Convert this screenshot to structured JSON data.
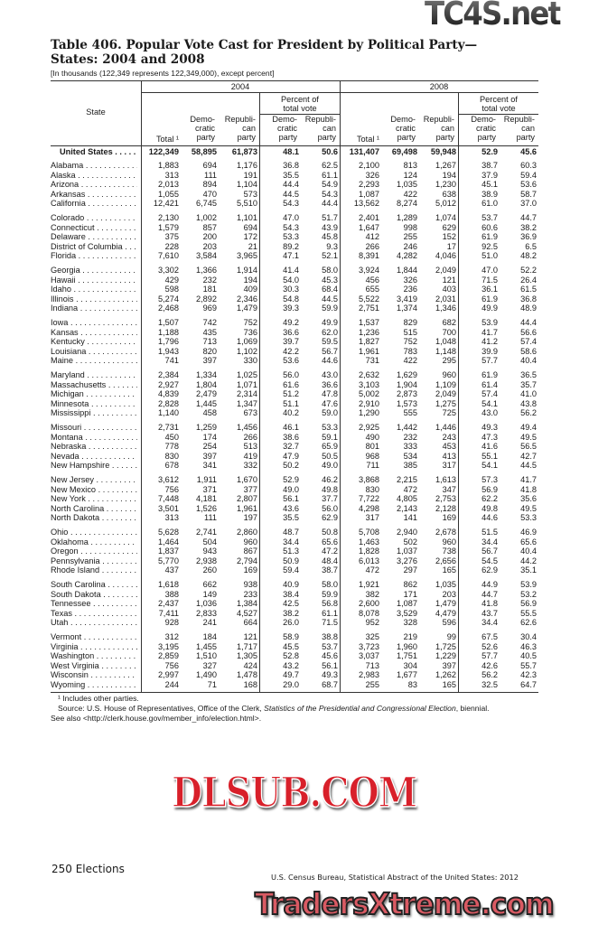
{
  "title": "Table 406. Popular Vote Cast for President by Political Party—States: 2004 and 2008",
  "subtitle": "[In thousands (122,349 represents 122,349,000), except percent]",
  "header": {
    "state": "State",
    "year_2004": "2004",
    "year_2008": "2008",
    "percent_of_total_vote": "Percent of total vote",
    "total": "Total ¹",
    "democratic_party": "Demo- cratic party",
    "republican_party": "Republi- can party",
    "democratic_pct": "Demo- cratic party",
    "republican_pct": "Republi- can party"
  },
  "united_states": {
    "state": "United States",
    "v": [
      "122,349",
      "58,895",
      "61,873",
      "48.1",
      "50.6",
      "131,407",
      "69,498",
      "59,948",
      "52.9",
      "45.6"
    ]
  },
  "groups": [
    [
      {
        "state": "Alabama",
        "v": [
          "1,883",
          "694",
          "1,176",
          "36.8",
          "62.5",
          "2,100",
          "813",
          "1,267",
          "38.7",
          "60.3"
        ]
      },
      {
        "state": "Alaska",
        "v": [
          "313",
          "111",
          "191",
          "35.5",
          "61.1",
          "326",
          "124",
          "194",
          "37.9",
          "59.4"
        ]
      },
      {
        "state": "Arizona",
        "v": [
          "2,013",
          "894",
          "1,104",
          "44.4",
          "54.9",
          "2,293",
          "1,035",
          "1,230",
          "45.1",
          "53.6"
        ]
      },
      {
        "state": "Arkansas",
        "v": [
          "1,055",
          "470",
          "573",
          "44.5",
          "54.3",
          "1,087",
          "422",
          "638",
          "38.9",
          "58.7"
        ]
      },
      {
        "state": "California",
        "v": [
          "12,421",
          "6,745",
          "5,510",
          "54.3",
          "44.4",
          "13,562",
          "8,274",
          "5,012",
          "61.0",
          "37.0"
        ]
      }
    ],
    [
      {
        "state": "Colorado",
        "v": [
          "2,130",
          "1,002",
          "1,101",
          "47.0",
          "51.7",
          "2,401",
          "1,289",
          "1,074",
          "53.7",
          "44.7"
        ]
      },
      {
        "state": "Connecticut",
        "v": [
          "1,579",
          "857",
          "694",
          "54.3",
          "43.9",
          "1,647",
          "998",
          "629",
          "60.6",
          "38.2"
        ]
      },
      {
        "state": "Delaware",
        "v": [
          "375",
          "200",
          "172",
          "53.3",
          "45.8",
          "412",
          "255",
          "152",
          "61.9",
          "36.9"
        ]
      },
      {
        "state": "District of Columbia",
        "v": [
          "228",
          "203",
          "21",
          "89.2",
          "9.3",
          "266",
          "246",
          "17",
          "92.5",
          "6.5"
        ]
      },
      {
        "state": "Florida",
        "v": [
          "7,610",
          "3,584",
          "3,965",
          "47.1",
          "52.1",
          "8,391",
          "4,282",
          "4,046",
          "51.0",
          "48.2"
        ]
      }
    ],
    [
      {
        "state": "Georgia",
        "v": [
          "3,302",
          "1,366",
          "1,914",
          "41.4",
          "58.0",
          "3,924",
          "1,844",
          "2,049",
          "47.0",
          "52.2"
        ]
      },
      {
        "state": "Hawaii",
        "v": [
          "429",
          "232",
          "194",
          "54.0",
          "45.3",
          "456",
          "326",
          "121",
          "71.5",
          "26.4"
        ]
      },
      {
        "state": "Idaho",
        "v": [
          "598",
          "181",
          "409",
          "30.3",
          "68.4",
          "655",
          "236",
          "403",
          "36.1",
          "61.5"
        ]
      },
      {
        "state": "Illinois",
        "v": [
          "5,274",
          "2,892",
          "2,346",
          "54.8",
          "44.5",
          "5,522",
          "3,419",
          "2,031",
          "61.9",
          "36.8"
        ]
      },
      {
        "state": "Indiana",
        "v": [
          "2,468",
          "969",
          "1,479",
          "39.3",
          "59.9",
          "2,751",
          "1,374",
          "1,346",
          "49.9",
          "48.9"
        ]
      }
    ],
    [
      {
        "state": "Iowa",
        "v": [
          "1,507",
          "742",
          "752",
          "49.2",
          "49.9",
          "1,537",
          "829",
          "682",
          "53.9",
          "44.4"
        ]
      },
      {
        "state": "Kansas",
        "v": [
          "1,188",
          "435",
          "736",
          "36.6",
          "62.0",
          "1,236",
          "515",
          "700",
          "41.7",
          "56.6"
        ]
      },
      {
        "state": "Kentucky",
        "v": [
          "1,796",
          "713",
          "1,069",
          "39.7",
          "59.5",
          "1,827",
          "752",
          "1,048",
          "41.2",
          "57.4"
        ]
      },
      {
        "state": "Louisiana",
        "v": [
          "1,943",
          "820",
          "1,102",
          "42.2",
          "56.7",
          "1,961",
          "783",
          "1,148",
          "39.9",
          "58.6"
        ]
      },
      {
        "state": "Maine",
        "v": [
          "741",
          "397",
          "330",
          "53.6",
          "44.6",
          "731",
          "422",
          "295",
          "57.7",
          "40.4"
        ]
      }
    ],
    [
      {
        "state": "Maryland",
        "v": [
          "2,384",
          "1,334",
          "1,025",
          "56.0",
          "43.0",
          "2,632",
          "1,629",
          "960",
          "61.9",
          "36.5"
        ]
      },
      {
        "state": "Massachusetts",
        "v": [
          "2,927",
          "1,804",
          "1,071",
          "61.6",
          "36.6",
          "3,103",
          "1,904",
          "1,109",
          "61.4",
          "35.7"
        ]
      },
      {
        "state": "Michigan",
        "v": [
          "4,839",
          "2,479",
          "2,314",
          "51.2",
          "47.8",
          "5,002",
          "2,873",
          "2,049",
          "57.4",
          "41.0"
        ]
      },
      {
        "state": "Minnesota",
        "v": [
          "2,828",
          "1,445",
          "1,347",
          "51.1",
          "47.6",
          "2,910",
          "1,573",
          "1,275",
          "54.1",
          "43.8"
        ]
      },
      {
        "state": "Mississippi",
        "v": [
          "1,140",
          "458",
          "673",
          "40.2",
          "59.0",
          "1,290",
          "555",
          "725",
          "43.0",
          "56.2"
        ]
      }
    ],
    [
      {
        "state": "Missouri",
        "v": [
          "2,731",
          "1,259",
          "1,456",
          "46.1",
          "53.3",
          "2,925",
          "1,442",
          "1,446",
          "49.3",
          "49.4"
        ]
      },
      {
        "state": "Montana",
        "v": [
          "450",
          "174",
          "266",
          "38.6",
          "59.1",
          "490",
          "232",
          "243",
          "47.3",
          "49.5"
        ]
      },
      {
        "state": "Nebraska",
        "v": [
          "778",
          "254",
          "513",
          "32.7",
          "65.9",
          "801",
          "333",
          "453",
          "41.6",
          "56.5"
        ]
      },
      {
        "state": "Nevada",
        "v": [
          "830",
          "397",
          "419",
          "47.9",
          "50.5",
          "968",
          "534",
          "413",
          "55.1",
          "42.7"
        ]
      },
      {
        "state": "New Hampshire",
        "v": [
          "678",
          "341",
          "332",
          "50.2",
          "49.0",
          "711",
          "385",
          "317",
          "54.1",
          "44.5"
        ]
      }
    ],
    [
      {
        "state": "New Jersey",
        "v": [
          "3,612",
          "1,911",
          "1,670",
          "52.9",
          "46.2",
          "3,868",
          "2,215",
          "1,613",
          "57.3",
          "41.7"
        ]
      },
      {
        "state": "New Mexico",
        "v": [
          "756",
          "371",
          "377",
          "49.0",
          "49.8",
          "830",
          "472",
          "347",
          "56.9",
          "41.8"
        ]
      },
      {
        "state": "New York",
        "v": [
          "7,448",
          "4,181",
          "2,807",
          "56.1",
          "37.7",
          "7,722",
          "4,805",
          "2,753",
          "62.2",
          "35.6"
        ]
      },
      {
        "state": "North Carolina",
        "v": [
          "3,501",
          "1,526",
          "1,961",
          "43.6",
          "56.0",
          "4,298",
          "2,143",
          "2,128",
          "49.8",
          "49.5"
        ]
      },
      {
        "state": "North Dakota",
        "v": [
          "313",
          "111",
          "197",
          "35.5",
          "62.9",
          "317",
          "141",
          "169",
          "44.6",
          "53.3"
        ]
      }
    ],
    [
      {
        "state": "Ohio",
        "v": [
          "5,628",
          "2,741",
          "2,860",
          "48.7",
          "50.8",
          "5,708",
          "2,940",
          "2,678",
          "51.5",
          "46.9"
        ]
      },
      {
        "state": "Oklahoma",
        "v": [
          "1,464",
          "504",
          "960",
          "34.4",
          "65.6",
          "1,463",
          "502",
          "960",
          "34.4",
          "65.6"
        ]
      },
      {
        "state": "Oregon",
        "v": [
          "1,837",
          "943",
          "867",
          "51.3",
          "47.2",
          "1,828",
          "1,037",
          "738",
          "56.7",
          "40.4"
        ]
      },
      {
        "state": "Pennsylvania",
        "v": [
          "5,770",
          "2,938",
          "2,794",
          "50.9",
          "48.4",
          "6,013",
          "3,276",
          "2,656",
          "54.5",
          "44.2"
        ]
      },
      {
        "state": "Rhode Island",
        "v": [
          "437",
          "260",
          "169",
          "59.4",
          "38.7",
          "472",
          "297",
          "165",
          "62.9",
          "35.1"
        ]
      }
    ],
    [
      {
        "state": "South Carolina",
        "v": [
          "1,618",
          "662",
          "938",
          "40.9",
          "58.0",
          "1,921",
          "862",
          "1,035",
          "44.9",
          "53.9"
        ]
      },
      {
        "state": "South Dakota",
        "v": [
          "388",
          "149",
          "233",
          "38.4",
          "59.9",
          "382",
          "171",
          "203",
          "44.7",
          "53.2"
        ]
      },
      {
        "state": "Tennessee",
        "v": [
          "2,437",
          "1,036",
          "1,384",
          "42.5",
          "56.8",
          "2,600",
          "1,087",
          "1,479",
          "41.8",
          "56.9"
        ]
      },
      {
        "state": "Texas",
        "v": [
          "7,411",
          "2,833",
          "4,527",
          "38.2",
          "61.1",
          "8,078",
          "3,529",
          "4,479",
          "43.7",
          "55.5"
        ]
      },
      {
        "state": "Utah",
        "v": [
          "928",
          "241",
          "664",
          "26.0",
          "71.5",
          "952",
          "328",
          "596",
          "34.4",
          "62.6"
        ]
      }
    ],
    [
      {
        "state": "Vermont",
        "v": [
          "312",
          "184",
          "121",
          "58.9",
          "38.8",
          "325",
          "219",
          "99",
          "67.5",
          "30.4"
        ]
      },
      {
        "state": "Virginia",
        "v": [
          "3,195",
          "1,455",
          "1,717",
          "45.5",
          "53.7",
          "3,723",
          "1,960",
          "1,725",
          "52.6",
          "46.3"
        ]
      },
      {
        "state": "Washington",
        "v": [
          "2,859",
          "1,510",
          "1,305",
          "52.8",
          "45.6",
          "3,037",
          "1,751",
          "1,229",
          "57.7",
          "40.5"
        ]
      },
      {
        "state": "West Virginia",
        "v": [
          "756",
          "327",
          "424",
          "43.2",
          "56.1",
          "713",
          "304",
          "397",
          "42.6",
          "55.7"
        ]
      },
      {
        "state": "Wisconsin",
        "v": [
          "2,997",
          "1,490",
          "1,478",
          "49.7",
          "49.3",
          "2,983",
          "1,677",
          "1,262",
          "56.2",
          "42.3"
        ]
      },
      {
        "state": "Wyoming",
        "v": [
          "244",
          "71",
          "168",
          "29.0",
          "68.7",
          "255",
          "83",
          "165",
          "32.5",
          "64.7"
        ]
      }
    ]
  ],
  "footnotes": {
    "note1": "¹ Includes other parties.",
    "source_prefix": "Source: U.S. House of Representatives, Office of the Clerk, ",
    "source_title": "Statistics of the Presidential and Congressional Election",
    "source_suffix": ", biennial.",
    "see_also": "See also <http://clerk.house.gov/member_info/election.html>."
  },
  "page": {
    "number_section": "250  Elections",
    "credit": "U.S. Census Bureau, Statistical Abstract of the United States: 2012"
  },
  "watermarks": {
    "top": "TC4S.net",
    "middle": "DLSUB.COM",
    "bottom": "TradersXtreme.com"
  }
}
